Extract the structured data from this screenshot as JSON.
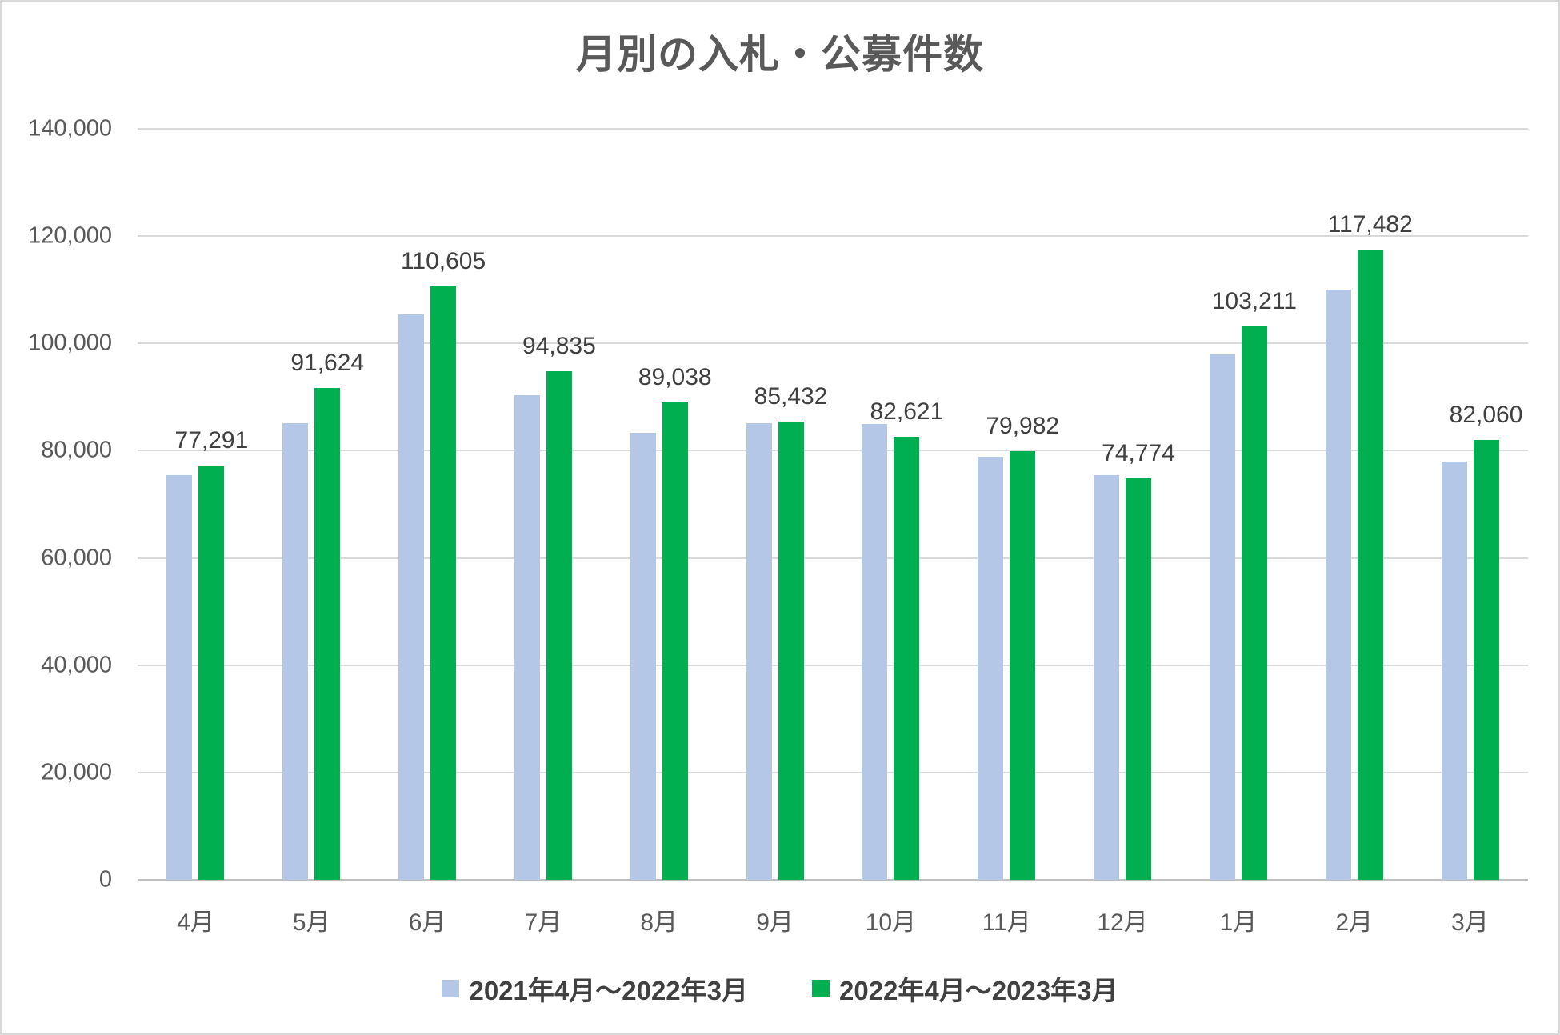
{
  "chart_data": {
    "type": "bar",
    "title": "月別の入札・公募件数",
    "categories": [
      "4月",
      "5月",
      "6月",
      "7月",
      "8月",
      "9月",
      "10月",
      "11月",
      "12月",
      "1月",
      "2月",
      "3月"
    ],
    "series": [
      {
        "name": "2021年4月〜2022年3月",
        "color": "#B4C7E7",
        "data_labels": false,
        "values": [
          75400,
          85200,
          105400,
          90300,
          83300,
          85100,
          85000,
          78800,
          75500,
          98000,
          110000,
          78000
        ]
      },
      {
        "name": "2022年4月〜2023年3月",
        "color": "#00B050",
        "data_labels": true,
        "values": [
          77291,
          91624,
          110605,
          94835,
          89038,
          85432,
          82621,
          79982,
          74774,
          103211,
          117482,
          82060
        ]
      }
    ],
    "ylim": [
      0,
      140000
    ],
    "ytick_step": 20000,
    "grid": true,
    "legend_position": "bottom",
    "xlabel": "",
    "ylabel": ""
  },
  "colors": {
    "gridline": "#D9D9D9",
    "axis_line": "#BFBFBF",
    "axis_text": "#595959",
    "label_text": "#404040",
    "background": "#FFFFFF",
    "border": "#D9D9D9"
  }
}
